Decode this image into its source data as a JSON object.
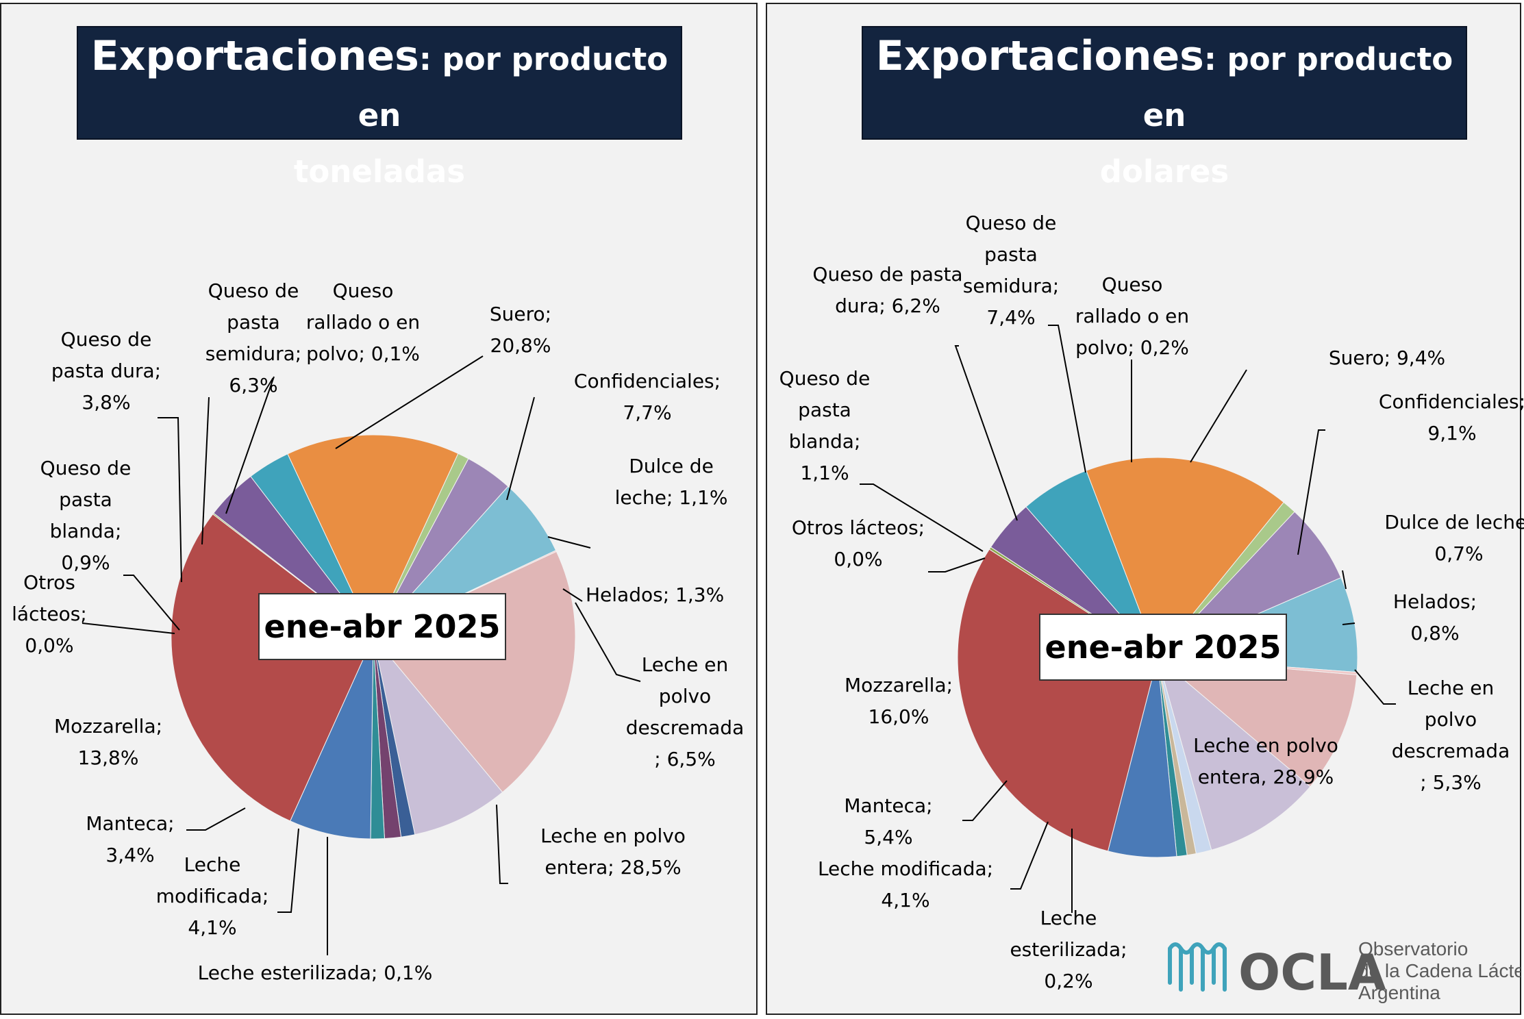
{
  "chart_data": [
    {
      "type": "pie",
      "title": "Exportaciones: por producto en toneladas",
      "title_main": "Exportaciones",
      "title_rest_1": ": por producto en",
      "title_rest_2": "toneladas",
      "center_label": "ene-abr 2025",
      "unit": "%",
      "slices": [
        {
          "name": "Suero",
          "value": 20.8,
          "color": "#e0b6b6"
        },
        {
          "name": "Confidenciales",
          "value": 7.7,
          "color": "#c9bfd7"
        },
        {
          "name": "Dulce de leche",
          "value": 1.1,
          "color": "#3a5f96"
        },
        {
          "name": "Helados",
          "value": 1.3,
          "color": "#74426e"
        },
        {
          "name": "",
          "value": 1.1,
          "color": "#2f8d96"
        },
        {
          "name": "Leche en polvo descremada",
          "value": 6.5,
          "color": "#4a7ab7"
        },
        {
          "name": "Leche en polvo entera",
          "value": 28.5,
          "color": "#b34b4a"
        },
        {
          "name": "Leche esterilizada",
          "value": 0.1,
          "color": "#8ea84f"
        },
        {
          "name": "Leche modificada",
          "value": 4.1,
          "color": "#7a5c9a"
        },
        {
          "name": "Manteca",
          "value": 3.4,
          "color": "#3fa3bb"
        },
        {
          "name": "Mozzarella",
          "value": 13.8,
          "color": "#e98e42"
        },
        {
          "name": "Otros lácteos",
          "value": 0.0,
          "color": "#a5a5a5"
        },
        {
          "name": "Queso de pasta blanda",
          "value": 0.9,
          "color": "#a9c98a"
        },
        {
          "name": "Queso de pasta dura",
          "value": 3.8,
          "color": "#9c86b6"
        },
        {
          "name": "Queso de pasta semidura",
          "value": 6.3,
          "color": "#7dbed3"
        },
        {
          "name": "Queso rallado o en polvo",
          "value": 0.1,
          "color": "#f0c8c8"
        }
      ],
      "labels": [
        {
          "lines": [
            "Suero;",
            "20,8%"
          ]
        },
        {
          "lines": [
            "Confidenciales;",
            "7,7%"
          ]
        },
        {
          "lines": [
            "Dulce de",
            "leche; 1,1%"
          ]
        },
        {
          "lines": [
            "Helados; 1,3%"
          ]
        },
        {
          "lines": [
            "Leche en",
            "polvo",
            "descremada",
            "; 6,5%"
          ]
        },
        {
          "lines": [
            "Leche en polvo",
            "entera; 28,5%"
          ]
        },
        {
          "lines": [
            "Leche esterilizada; 0,1%"
          ]
        },
        {
          "lines": [
            "Leche",
            "modificada;",
            "4,1%"
          ]
        },
        {
          "lines": [
            "Manteca;",
            "3,4%"
          ]
        },
        {
          "lines": [
            "Mozzarella;",
            "13,8%"
          ]
        },
        {
          "lines": [
            "Otros",
            "lácteos;",
            "0,0%"
          ]
        },
        {
          "lines": [
            "Queso de",
            "pasta",
            "blanda;",
            "0,9%"
          ]
        },
        {
          "lines": [
            "Queso de",
            "pasta dura;",
            "3,8%"
          ]
        },
        {
          "lines": [
            "Queso de",
            "pasta",
            "semidura;",
            "6,3%"
          ]
        },
        {
          "lines": [
            "Queso",
            "rallado o en",
            "polvo; 0,1%"
          ]
        }
      ]
    },
    {
      "type": "pie",
      "title": "Exportaciones: por producto en dolares",
      "title_main": "Exportaciones",
      "title_rest_1": ": por producto en",
      "title_rest_2": "dolares",
      "center_label": "ene-abr 2025",
      "unit": "%",
      "slices": [
        {
          "name": "Suero",
          "value": 9.4,
          "color": "#e0b6b6"
        },
        {
          "name": "Confidenciales",
          "value": 9.1,
          "color": "#c9bfd7"
        },
        {
          "name": "",
          "value": 1.2,
          "color": "#c9d8ee"
        },
        {
          "name": "Dulce de leche",
          "value": 0.7,
          "color": "#c9b79a"
        },
        {
          "name": "Helados",
          "value": 0.8,
          "color": "#2f8d96"
        },
        {
          "name": "Leche en polvo descremada",
          "value": 5.3,
          "color": "#4a7ab7"
        },
        {
          "name": "Leche en polvo entera",
          "value": 28.9,
          "color": "#b34b4a"
        },
        {
          "name": "Leche esterilizada",
          "value": 0.2,
          "color": "#8ea84f"
        },
        {
          "name": "Leche modificada",
          "value": 4.1,
          "color": "#7a5c9a"
        },
        {
          "name": "Manteca",
          "value": 5.4,
          "color": "#3fa3bb"
        },
        {
          "name": "Mozzarella",
          "value": 16.0,
          "color": "#e98e42"
        },
        {
          "name": "Otros lácteos",
          "value": 0.0,
          "color": "#a5a5a5"
        },
        {
          "name": "Queso de pasta blanda",
          "value": 1.1,
          "color": "#a9c98a"
        },
        {
          "name": "Queso de pasta dura",
          "value": 6.2,
          "color": "#9c86b6"
        },
        {
          "name": "Queso de pasta semidura",
          "value": 7.4,
          "color": "#7dbed3"
        },
        {
          "name": "Queso rallado o en polvo",
          "value": 0.2,
          "color": "#f0c8c8"
        }
      ],
      "labels": [
        {
          "lines": [
            "Suero; 9,4%"
          ]
        },
        {
          "lines": [
            "Confidenciales;",
            "9,1%"
          ]
        },
        {
          "lines": [
            "Dulce de leche;",
            "0,7%"
          ]
        },
        {
          "lines": [
            "Helados;",
            "0,8%"
          ]
        },
        {
          "lines": [
            "Leche en",
            "polvo",
            "descremada",
            "; 5,3%"
          ]
        },
        {
          "lines": [
            "Leche en polvo",
            "entera, 28,9%"
          ]
        },
        {
          "lines": [
            "Leche",
            "esterilizada;",
            "0,2%"
          ]
        },
        {
          "lines": [
            "Leche modificada;",
            "4,1%"
          ]
        },
        {
          "lines": [
            "Manteca;",
            "5,4%"
          ]
        },
        {
          "lines": [
            "Mozzarella;",
            "16,0%"
          ]
        },
        {
          "lines": [
            "Otros lácteos;",
            "0,0%"
          ]
        },
        {
          "lines": [
            "Queso de",
            "pasta",
            "blanda;",
            "1,1%"
          ]
        },
        {
          "lines": [
            "Queso de pasta",
            "dura; 6,2%"
          ]
        },
        {
          "lines": [
            "Queso de",
            "pasta",
            "semidura;",
            "7,4%"
          ]
        },
        {
          "lines": [
            "Queso",
            "rallado o en",
            "polvo; 0,2%"
          ]
        }
      ]
    }
  ],
  "logo": {
    "name": "OCLA",
    "line1": "Observatorio",
    "line2": "de la Cadena Láctea",
    "line3": "Argentina",
    "color_text": "#5a5a5a",
    "color_wave": "#3fa3bb"
  }
}
